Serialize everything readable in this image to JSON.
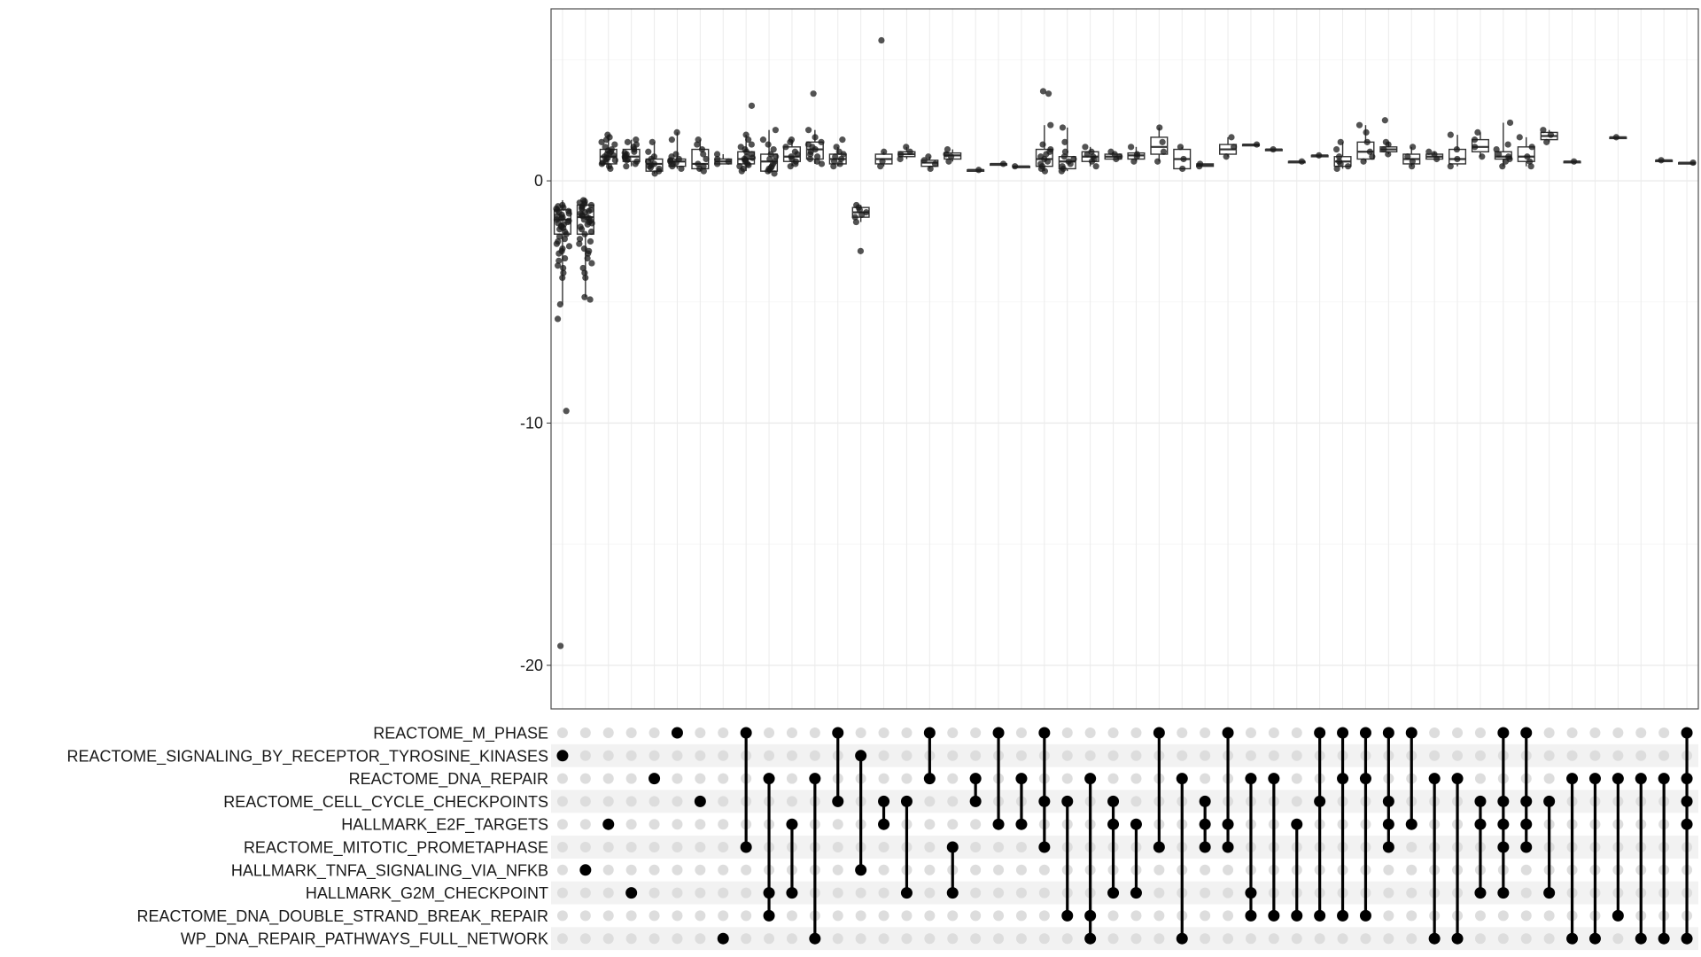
{
  "chart_data": {
    "type": "upset-boxplot",
    "title": "",
    "xlabel": "",
    "ylabel": "",
    "ylim": [
      -21.8,
      7.1
    ],
    "y_ticks": [
      0,
      -10,
      -20
    ],
    "y_tick_labels": [
      "0",
      "-10",
      "-20"
    ],
    "grid": true,
    "sets": [
      "REACTOME_M_PHASE",
      "REACTOME_SIGNALING_BY_RECEPTOR_TYROSINE_KINASES",
      "REACTOME_DNA_REPAIR",
      "REACTOME_CELL_CYCLE_CHECKPOINTS",
      "HALLMARK_E2F_TARGETS",
      "REACTOME_MITOTIC_PROMETAPHASE",
      "HALLMARK_TNFA_SIGNALING_VIA_NFKB",
      "HALLMARK_G2M_CHECKPOINT",
      "REACTOME_DNA_DOUBLE_STRAND_BREAK_REPAIR",
      "WP_DNA_REPAIR_PATHWAYS_FULL_NETWORK"
    ],
    "intersections": [
      [
        1
      ],
      [
        6
      ],
      [
        4
      ],
      [
        7
      ],
      [
        2
      ],
      [
        0
      ],
      [
        3
      ],
      [
        9
      ],
      [
        0,
        5
      ],
      [
        2,
        7,
        8
      ],
      [
        4,
        7
      ],
      [
        2,
        9
      ],
      [
        0,
        3
      ],
      [
        1,
        6
      ],
      [
        3,
        4
      ],
      [
        3,
        7
      ],
      [
        0,
        2
      ],
      [
        5,
        7
      ],
      [
        2,
        3
      ],
      [
        0,
        4
      ],
      [
        2,
        4
      ],
      [
        0,
        3,
        5
      ],
      [
        3,
        8
      ],
      [
        2,
        8,
        9
      ],
      [
        3,
        4,
        7
      ],
      [
        4,
        7
      ],
      [
        0,
        5
      ],
      [
        2,
        9
      ],
      [
        3,
        4,
        5
      ],
      [
        0,
        4,
        5
      ],
      [
        2,
        7,
        8
      ],
      [
        2,
        8
      ],
      [
        4,
        8
      ],
      [
        0,
        3,
        8
      ],
      [
        0,
        2,
        8
      ],
      [
        0,
        2,
        8
      ],
      [
        0,
        3,
        4,
        5
      ],
      [
        0,
        4
      ],
      [
        2,
        9
      ],
      [
        2,
        9
      ],
      [
        3,
        4,
        7
      ],
      [
        0,
        3,
        4,
        5,
        7
      ],
      [
        0,
        3,
        4,
        5
      ],
      [
        3,
        7
      ],
      [
        2,
        9
      ],
      [
        2,
        9
      ],
      [
        2,
        8
      ],
      [
        2,
        9
      ],
      [
        2,
        9
      ],
      [
        0,
        2,
        3,
        4,
        9
      ]
    ],
    "boxes": [
      {
        "q1": -2.2,
        "median": -1.6,
        "q3": -1.2,
        "wlo": -5.1,
        "whi": -0.8,
        "points": [
          -1.0,
          -1.1,
          -1.2,
          -1.3,
          -1.4,
          -1.5,
          -1.6,
          -1.7,
          -1.8,
          -1.9,
          -2.0,
          -2.2,
          -2.4,
          -2.6,
          -2.8,
          -3.0,
          -3.2,
          -3.5,
          -3.8,
          -4.0,
          -1.05,
          -1.15,
          -1.25,
          -1.35,
          -1.45,
          -1.55,
          -1.65,
          -1.75,
          -1.85,
          -1.95,
          -2.1,
          -2.3,
          -2.5,
          -2.7,
          -2.9,
          -3.3,
          -3.6,
          -5.1,
          -5.7,
          -9.5,
          -19.2
        ]
      },
      {
        "q1": -2.2,
        "median": -1.5,
        "q3": -1.0,
        "wlo": -4.8,
        "whi": -0.7,
        "points": [
          -0.8,
          -0.9,
          -1.0,
          -1.1,
          -1.2,
          -1.3,
          -1.4,
          -1.5,
          -1.6,
          -1.7,
          -1.8,
          -1.9,
          -2.0,
          -2.2,
          -2.4,
          -2.6,
          -2.8,
          -3.0,
          -3.2,
          -3.4,
          -3.6,
          -3.8,
          -4.0,
          -4.8,
          -4.9,
          -0.85,
          -0.95,
          -1.05,
          -1.15,
          -1.25,
          -1.35,
          -1.45,
          -1.55,
          -1.65,
          -1.75,
          -2.1,
          -2.5,
          -2.9
        ]
      },
      {
        "q1": 0.7,
        "median": 1.0,
        "q3": 1.3,
        "wlo": 0.5,
        "whi": 1.9,
        "points": [
          0.5,
          0.6,
          0.7,
          0.8,
          0.9,
          1.0,
          1.1,
          1.2,
          1.3,
          1.4,
          1.5,
          1.6,
          1.7,
          1.8,
          1.9,
          0.75,
          0.85,
          0.95,
          1.05,
          1.15,
          1.25
        ]
      },
      {
        "q1": 0.8,
        "median": 1.0,
        "q3": 1.3,
        "wlo": 0.6,
        "whi": 1.7,
        "points": [
          0.6,
          0.7,
          0.8,
          0.9,
          1.0,
          1.1,
          1.2,
          1.3,
          1.4,
          1.5,
          1.6,
          1.7,
          0.85,
          0.95,
          1.05,
          1.15
        ]
      },
      {
        "q1": 0.4,
        "median": 0.7,
        "q3": 0.9,
        "wlo": 0.3,
        "whi": 1.6,
        "points": [
          0.3,
          0.4,
          0.5,
          0.6,
          0.7,
          0.8,
          0.9,
          1.0,
          1.2,
          1.6,
          0.55,
          0.65
        ]
      },
      {
        "q1": 0.6,
        "median": 0.8,
        "q3": 0.9,
        "wlo": 0.5,
        "whi": 2.0,
        "points": [
          0.5,
          0.6,
          0.7,
          0.8,
          0.9,
          1.0,
          1.1,
          1.7,
          2.0,
          0.75,
          0.85
        ]
      },
      {
        "q1": 0.5,
        "median": 0.7,
        "q3": 1.3,
        "wlo": 0.4,
        "whi": 1.7,
        "points": [
          0.4,
          0.5,
          0.6,
          0.7,
          0.9,
          1.1,
          1.3,
          1.5,
          1.7
        ]
      },
      {
        "q1": 0.7,
        "median": 0.8,
        "q3": 0.9,
        "wlo": 0.7,
        "whi": 1.1,
        "points": [
          0.7,
          0.8,
          0.9,
          1.1
        ]
      },
      {
        "q1": 0.7,
        "median": 0.9,
        "q3": 1.2,
        "wlo": 0.4,
        "whi": 1.9,
        "points": [
          0.4,
          0.5,
          0.6,
          0.7,
          0.8,
          0.9,
          1.0,
          1.1,
          1.2,
          1.3,
          1.4,
          1.5,
          1.7,
          1.9,
          3.1,
          0.65,
          0.85,
          0.95
        ]
      },
      {
        "q1": 0.4,
        "median": 0.8,
        "q3": 1.1,
        "wlo": 0.3,
        "whi": 2.1,
        "points": [
          0.3,
          0.4,
          0.5,
          0.6,
          0.7,
          0.8,
          0.9,
          1.0,
          1.1,
          1.3,
          1.5,
          1.7,
          2.1,
          0.45,
          0.55
        ]
      },
      {
        "q1": 0.8,
        "median": 1.0,
        "q3": 1.4,
        "wlo": 0.6,
        "whi": 1.7,
        "points": [
          0.6,
          0.7,
          0.8,
          0.9,
          1.0,
          1.1,
          1.2,
          1.4,
          1.6,
          1.7
        ]
      },
      {
        "q1": 0.9,
        "median": 1.3,
        "q3": 1.6,
        "wlo": 0.7,
        "whi": 2.1,
        "points": [
          0.7,
          0.8,
          0.9,
          1.0,
          1.1,
          1.2,
          1.3,
          1.4,
          1.5,
          1.6,
          1.8,
          2.1,
          3.6
        ]
      },
      {
        "q1": 0.7,
        "median": 0.9,
        "q3": 1.1,
        "wlo": 0.6,
        "whi": 1.4,
        "points": [
          0.6,
          0.7,
          0.8,
          0.9,
          1.0,
          1.1,
          1.2,
          1.4,
          1.7
        ]
      },
      {
        "q1": -1.5,
        "median": -1.3,
        "q3": -1.1,
        "wlo": -1.7,
        "whi": -1.0,
        "points": [
          -1.0,
          -1.1,
          -1.2,
          -1.3,
          -1.4,
          -1.5,
          -1.7,
          -2.9
        ]
      },
      {
        "q1": 0.7,
        "median": 0.9,
        "q3": 1.1,
        "wlo": 0.6,
        "whi": 1.2,
        "points": [
          0.6,
          0.8,
          1.2,
          5.8
        ]
      },
      {
        "q1": 1.0,
        "median": 1.1,
        "q3": 1.2,
        "wlo": 0.9,
        "whi": 1.4,
        "points": [
          0.9,
          1.1,
          1.2,
          1.4
        ]
      },
      {
        "q1": 0.6,
        "median": 0.75,
        "q3": 0.85,
        "wlo": 0.5,
        "whi": 1.0,
        "points": [
          0.5,
          0.7,
          0.85,
          1.0
        ]
      },
      {
        "q1": 0.9,
        "median": 1.05,
        "q3": 1.15,
        "wlo": 0.8,
        "whi": 1.3,
        "points": [
          0.8,
          1.0,
          1.1,
          1.3
        ]
      },
      {
        "q1": 0.45,
        "median": 0.45,
        "q3": 0.45,
        "wlo": 0.45,
        "whi": 0.45,
        "points": [
          0.45
        ]
      },
      {
        "q1": 0.7,
        "median": 0.7,
        "q3": 0.7,
        "wlo": 0.7,
        "whi": 0.7,
        "points": [
          0.7
        ]
      },
      {
        "q1": 0.6,
        "median": 0.6,
        "q3": 0.6,
        "wlo": 0.6,
        "whi": 0.6,
        "points": [
          0.6
        ]
      },
      {
        "q1": 0.6,
        "median": 0.9,
        "q3": 1.3,
        "wlo": 0.4,
        "whi": 2.3,
        "points": [
          0.4,
          0.5,
          0.6,
          0.7,
          0.8,
          0.9,
          1.0,
          1.1,
          1.2,
          1.3,
          1.5,
          2.3,
          3.6,
          3.7
        ]
      },
      {
        "q1": 0.5,
        "median": 0.8,
        "q3": 1.0,
        "wlo": 0.4,
        "whi": 2.2,
        "points": [
          0.4,
          0.5,
          0.6,
          0.7,
          0.8,
          0.9,
          1.0,
          1.2,
          1.6,
          2.2
        ]
      },
      {
        "q1": 0.8,
        "median": 1.0,
        "q3": 1.2,
        "wlo": 0.6,
        "whi": 1.4,
        "points": [
          0.6,
          0.8,
          0.9,
          1.0,
          1.1,
          1.2,
          1.4
        ]
      },
      {
        "q1": 0.9,
        "median": 1.0,
        "q3": 1.1,
        "wlo": 0.9,
        "whi": 1.2,
        "points": [
          0.9,
          1.0,
          1.1,
          1.2
        ]
      },
      {
        "q1": 0.9,
        "median": 1.05,
        "q3": 1.15,
        "wlo": 0.8,
        "whi": 1.4,
        "points": [
          0.8,
          1.0,
          1.1,
          1.4
        ]
      },
      {
        "q1": 1.1,
        "median": 1.4,
        "q3": 1.8,
        "wlo": 0.8,
        "whi": 2.2,
        "points": [
          0.8,
          1.2,
          1.6,
          2.2
        ]
      },
      {
        "q1": 0.5,
        "median": 0.9,
        "q3": 1.3,
        "wlo": 0.5,
        "whi": 1.4,
        "points": [
          0.5,
          0.9,
          1.4
        ]
      },
      {
        "q1": 0.6,
        "median": 0.65,
        "q3": 0.7,
        "wlo": 0.6,
        "whi": 0.7,
        "points": [
          0.6,
          0.7
        ]
      },
      {
        "q1": 1.1,
        "median": 1.3,
        "q3": 1.5,
        "wlo": 1.0,
        "whi": 1.8,
        "points": [
          1.0,
          1.4,
          1.8
        ]
      },
      {
        "q1": 1.5,
        "median": 1.5,
        "q3": 1.5,
        "wlo": 1.5,
        "whi": 1.5,
        "points": [
          1.5
        ]
      },
      {
        "q1": 1.3,
        "median": 1.3,
        "q3": 1.3,
        "wlo": 1.3,
        "whi": 1.3,
        "points": [
          1.3
        ]
      },
      {
        "q1": 0.8,
        "median": 0.8,
        "q3": 0.8,
        "wlo": 0.8,
        "whi": 0.8,
        "points": [
          0.8
        ]
      },
      {
        "q1": 1.05,
        "median": 1.05,
        "q3": 1.05,
        "wlo": 1.05,
        "whi": 1.05,
        "points": [
          1.05
        ]
      },
      {
        "q1": 0.6,
        "median": 0.8,
        "q3": 1.0,
        "wlo": 0.5,
        "whi": 1.6,
        "points": [
          0.5,
          0.6,
          0.7,
          0.8,
          1.0,
          1.3,
          1.6
        ]
      },
      {
        "q1": 0.9,
        "median": 1.2,
        "q3": 1.6,
        "wlo": 0.8,
        "whi": 2.3,
        "points": [
          0.8,
          1.0,
          1.2,
          1.6,
          2.0,
          2.3
        ]
      },
      {
        "q1": 1.2,
        "median": 1.3,
        "q3": 1.4,
        "wlo": 1.1,
        "whi": 1.6,
        "points": [
          1.1,
          1.3,
          1.5,
          1.6,
          2.5
        ]
      },
      {
        "q1": 0.7,
        "median": 0.9,
        "q3": 1.1,
        "wlo": 0.6,
        "whi": 1.4,
        "points": [
          0.6,
          0.8,
          1.0,
          1.4
        ]
      },
      {
        "q1": 0.9,
        "median": 1.0,
        "q3": 1.1,
        "wlo": 0.9,
        "whi": 1.2,
        "points": [
          0.9,
          1.1,
          1.2
        ]
      },
      {
        "q1": 0.7,
        "median": 0.9,
        "q3": 1.3,
        "wlo": 0.6,
        "whi": 1.9,
        "points": [
          0.6,
          0.9,
          1.3,
          1.9
        ]
      },
      {
        "q1": 1.2,
        "median": 1.4,
        "q3": 1.7,
        "wlo": 1.0,
        "whi": 2.0,
        "points": [
          1.0,
          1.4,
          1.7,
          2.0
        ]
      },
      {
        "q1": 0.9,
        "median": 1.0,
        "q3": 1.2,
        "wlo": 0.6,
        "whi": 2.4,
        "points": [
          0.6,
          0.8,
          0.9,
          1.0,
          1.1,
          1.3,
          1.5,
          2.4
        ]
      },
      {
        "q1": 0.8,
        "median": 1.0,
        "q3": 1.4,
        "wlo": 0.6,
        "whi": 1.8,
        "points": [
          0.6,
          0.8,
          1.0,
          1.4,
          1.8
        ]
      },
      {
        "q1": 1.7,
        "median": 1.85,
        "q3": 2.0,
        "wlo": 1.6,
        "whi": 2.1,
        "points": [
          1.6,
          1.9,
          2.1
        ]
      },
      {
        "q1": 0.8,
        "median": 0.8,
        "q3": 0.8,
        "wlo": 0.8,
        "whi": 0.8,
        "points": [
          0.8
        ]
      },
      {
        "q1": null,
        "median": null,
        "q3": null,
        "wlo": null,
        "whi": null,
        "points": []
      },
      {
        "q1": 1.8,
        "median": 1.8,
        "q3": 1.8,
        "wlo": 1.8,
        "whi": 1.8,
        "points": [
          1.8
        ]
      },
      {
        "q1": null,
        "median": null,
        "q3": null,
        "wlo": null,
        "whi": null,
        "points": []
      },
      {
        "q1": 0.85,
        "median": 0.85,
        "q3": 0.85,
        "wlo": 0.85,
        "whi": 0.85,
        "points": [
          0.85
        ]
      },
      {
        "q1": 0.75,
        "median": 0.75,
        "q3": 0.75,
        "wlo": 0.75,
        "whi": 0.75,
        "points": [
          0.75
        ]
      }
    ]
  },
  "colors": {
    "point": "#1a1a1a",
    "box_stroke": "#333333",
    "grid_major": "#ebebeb",
    "grid_minor": "#f5f5f5",
    "panel_border": "#4d4d4d",
    "dot_active": "#000000",
    "dot_inactive": "#dddddd",
    "row_stripe": "#f2f2f2"
  }
}
